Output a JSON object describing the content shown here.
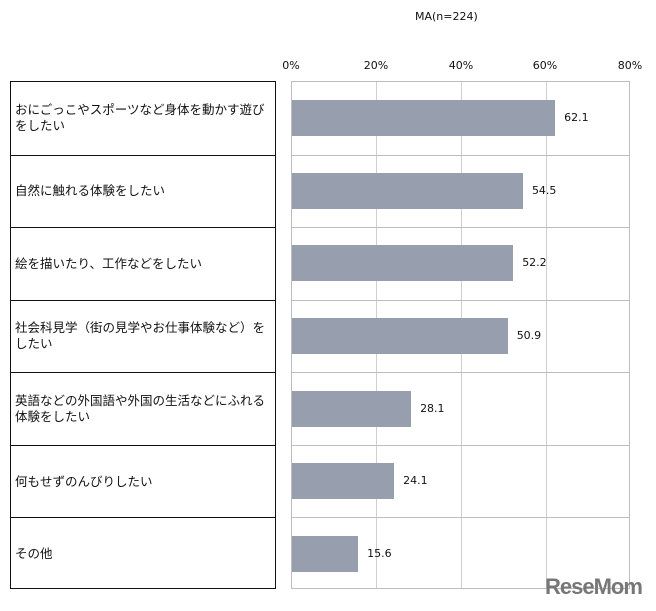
{
  "chart_data": {
    "type": "bar",
    "orientation": "horizontal",
    "title": "",
    "note": "MA(n=224)",
    "xlabel": "",
    "ylabel": "",
    "xlim": [
      0,
      80
    ],
    "x_ticks": [
      "0%",
      "20%",
      "40%",
      "60%",
      "80%"
    ],
    "grid": true,
    "categories": [
      "おにごっこやスポーツなど身体を動かす遊びをしたい",
      "自然に触れる体験をしたい",
      "絵を描いたり、工作などをしたい",
      "社会科見学（街の見学やお仕事体験など）をしたい",
      "英語などの外国語や外国の生活などにふれる体験をしたい",
      "何もせずのんびりしたい",
      "その他"
    ],
    "values": [
      62.1,
      54.5,
      52.2,
      50.9,
      28.1,
      24.1,
      15.6
    ],
    "value_labels": [
      "62.1",
      "54.5",
      "52.2",
      "50.9",
      "28.1",
      "24.1",
      "15.6"
    ],
    "bar_color": "#979fae"
  },
  "watermark": "ReseMom"
}
